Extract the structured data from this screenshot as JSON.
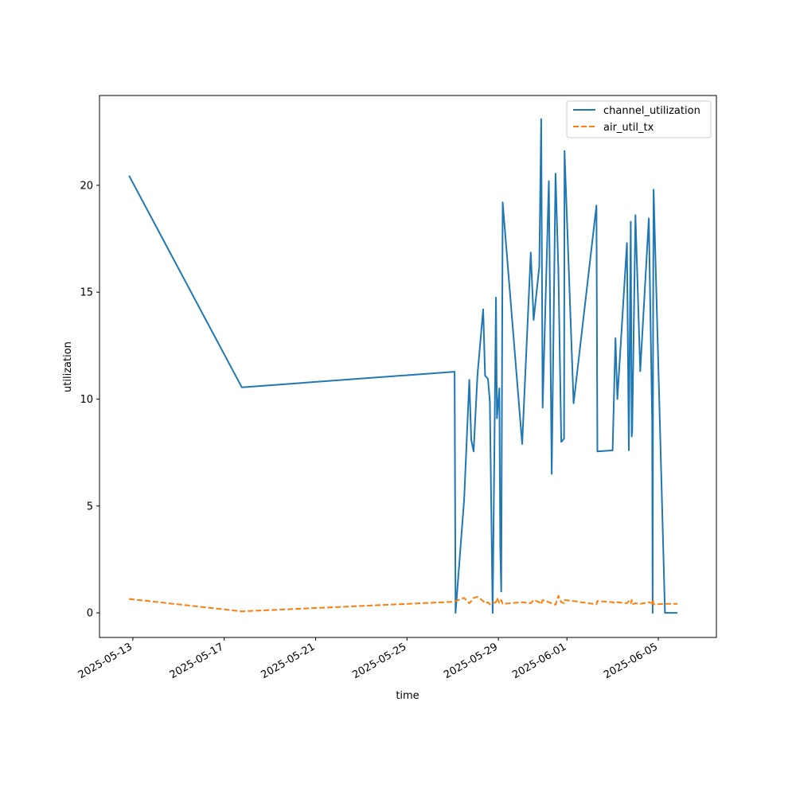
{
  "chart_data": {
    "type": "line",
    "xlabel": "time",
    "ylabel": "utilization",
    "x_axis_type": "date",
    "xlim": [
      "2025-05-11T13:00",
      "2025-06-07T13:00"
    ],
    "ylim": [
      -1.15,
      24.2
    ],
    "x_ticks": [
      {
        "date": "2025-05-13T00:00",
        "label": "2025-05-13"
      },
      {
        "date": "2025-05-17T00:00",
        "label": "2025-05-17"
      },
      {
        "date": "2025-05-21T00:00",
        "label": "2025-05-21"
      },
      {
        "date": "2025-05-25T00:00",
        "label": "2025-05-25"
      },
      {
        "date": "2025-05-29T00:00",
        "label": "2025-05-29"
      },
      {
        "date": "2025-06-01T00:00",
        "label": "2025-06-01"
      },
      {
        "date": "2025-06-05T00:00",
        "label": "2025-06-05"
      }
    ],
    "y_ticks": [
      {
        "value": 0,
        "label": "0"
      },
      {
        "value": 5,
        "label": "5"
      },
      {
        "value": 10,
        "label": "10"
      },
      {
        "value": 15,
        "label": "15"
      },
      {
        "value": 20,
        "label": "20"
      }
    ],
    "grid": false,
    "legend_position": "top-right",
    "x": [
      "2025-05-12T20:00",
      "2025-05-17T18:30",
      "2025-05-27T02:00",
      "2025-05-27T03:00",
      "2025-05-27T12:00",
      "2025-05-27T17:30",
      "2025-05-27T19:30",
      "2025-05-27T22:00",
      "2025-05-28T02:00",
      "2025-05-28T08:00",
      "2025-05-28T10:00",
      "2025-05-28T13:00",
      "2025-05-28T15:00",
      "2025-05-28T18:00",
      "2025-05-28T21:30",
      "2025-05-28T22:30",
      "2025-05-29T01:00",
      "2025-05-29T02:00",
      "2025-05-29T03:00",
      "2025-05-29T04:30",
      "2025-05-30T01:00",
      "2025-05-30T10:00",
      "2025-05-30T13:00",
      "2025-05-30T19:00",
      "2025-05-30T21:00",
      "2025-05-30T22:30",
      "2025-05-31T05:00",
      "2025-05-31T08:00",
      "2025-05-31T12:00",
      "2025-05-31T15:00",
      "2025-05-31T18:00",
      "2025-05-31T21:00",
      "2025-05-31T21:30",
      "2025-06-01T07:00",
      "2025-06-02T07:00",
      "2025-06-02T08:00",
      "2025-06-03T00:00",
      "2025-06-03T03:00",
      "2025-06-03T05:00",
      "2025-06-03T15:00",
      "2025-06-03T17:00",
      "2025-06-03T19:00",
      "2025-06-03T20:00",
      "2025-06-03T20:30",
      "2025-06-04T00:00",
      "2025-06-04T05:00",
      "2025-06-04T14:00",
      "2025-06-04T17:30",
      "2025-06-04T18:00",
      "2025-06-04T18:30",
      "2025-06-04T19:00",
      "2025-06-05T07:00",
      "2025-06-05T10:00",
      "2025-06-05T16:00",
      "2025-06-05T20:00"
    ],
    "series": [
      {
        "name": "channel_utilization",
        "color": "#1f77b4",
        "dash": "solid",
        "values": [
          20.45,
          10.55,
          11.28,
          0.0,
          5.3,
          10.9,
          8.1,
          7.55,
          11.1,
          14.2,
          11.1,
          10.95,
          9.9,
          0.0,
          14.75,
          9.1,
          10.5,
          3.0,
          1.0,
          19.2,
          7.9,
          16.85,
          13.7,
          16.2,
          23.1,
          9.6,
          20.2,
          6.5,
          20.55,
          16.0,
          8.0,
          8.15,
          21.6,
          9.8,
          19.05,
          7.55,
          7.6,
          12.85,
          10.0,
          17.3,
          7.6,
          18.3,
          8.25,
          8.5,
          18.6,
          11.3,
          18.45,
          9.0,
          0.0,
          14.0,
          19.8,
          0.0,
          0.0,
          0.0,
          0.0
        ]
      },
      {
        "name": "air_util_tx",
        "color": "#ff7f0e",
        "dash": "dashed",
        "values": [
          0.65,
          0.07,
          0.52,
          0.55,
          0.7,
          0.45,
          0.55,
          0.7,
          0.75,
          0.55,
          0.45,
          0.5,
          0.4,
          0.45,
          0.5,
          0.7,
          0.45,
          0.55,
          0.6,
          0.42,
          0.5,
          0.45,
          0.6,
          0.5,
          0.4,
          0.6,
          0.5,
          0.45,
          0.38,
          0.8,
          0.5,
          0.45,
          0.6,
          0.55,
          0.4,
          0.55,
          0.5,
          0.45,
          0.5,
          0.45,
          0.55,
          0.45,
          0.6,
          0.4,
          0.45,
          0.42,
          0.5,
          0.45,
          0.55,
          0.6,
          0.4,
          0.42,
          0.42,
          0.42,
          0.42
        ]
      }
    ]
  }
}
